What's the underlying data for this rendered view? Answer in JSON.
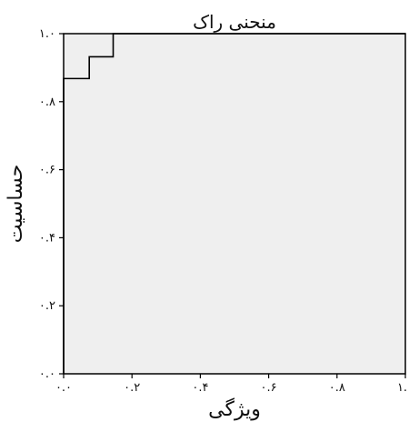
{
  "chart_data": {
    "type": "line",
    "title": "منحنی راک",
    "xlabel": "ویژگی",
    "ylabel": "حساسیت",
    "xlim": [
      0.0,
      1.0
    ],
    "ylim": [
      0.0,
      1.0
    ],
    "x_ticks": [
      0.0,
      0.2,
      0.4,
      0.6,
      0.8,
      1.0
    ],
    "y_ticks": [
      0.0,
      0.2,
      0.4,
      0.6,
      0.8,
      1.0
    ],
    "x_tick_labels": [
      "۰.۰",
      "۰.۲",
      "۰.۴",
      "۰.۶",
      "۰.۸",
      "۱.۰"
    ],
    "y_tick_labels": [
      "۰.۰",
      "۰.۲",
      "۰.۴",
      "۰.۶",
      "۰.۸",
      "۱.۰"
    ],
    "grid": false,
    "series": [
      {
        "x": [
          0.0,
          0.0,
          0.075,
          0.075,
          0.145,
          0.145,
          1.0
        ],
        "y": [
          0.0,
          0.868,
          0.868,
          0.932,
          0.932,
          1.0,
          1.0
        ]
      }
    ]
  },
  "colors": {
    "plot_background": "#efefef",
    "line": "#000000",
    "text": "#111111"
  }
}
